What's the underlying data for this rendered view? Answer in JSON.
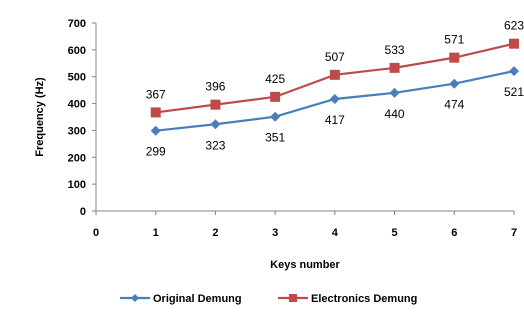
{
  "chart_data": {
    "type": "line",
    "x": [
      1,
      2,
      3,
      4,
      5,
      6,
      7
    ],
    "x_ticks": [
      "0",
      "1",
      "2",
      "3",
      "4",
      "5",
      "6",
      "7"
    ],
    "xlabel": "Keys number",
    "ylabel": "Frequency (Hz)",
    "xlim": [
      0,
      7
    ],
    "ylim": [
      0,
      700
    ],
    "y_ticks": [
      0,
      100,
      200,
      300,
      400,
      500,
      600,
      700
    ],
    "grid": false,
    "legend_position": "bottom",
    "series": [
      {
        "name": "Original Demung",
        "values": [
          299,
          323,
          351,
          417,
          440,
          474,
          521
        ],
        "color": "#4a7ebb",
        "marker": "diamond",
        "label_position": "below"
      },
      {
        "name": "Electronics Demung",
        "values": [
          367,
          396,
          425,
          507,
          533,
          571,
          623
        ],
        "color": "#be4b48",
        "marker": "square",
        "label_position": "above"
      }
    ]
  }
}
